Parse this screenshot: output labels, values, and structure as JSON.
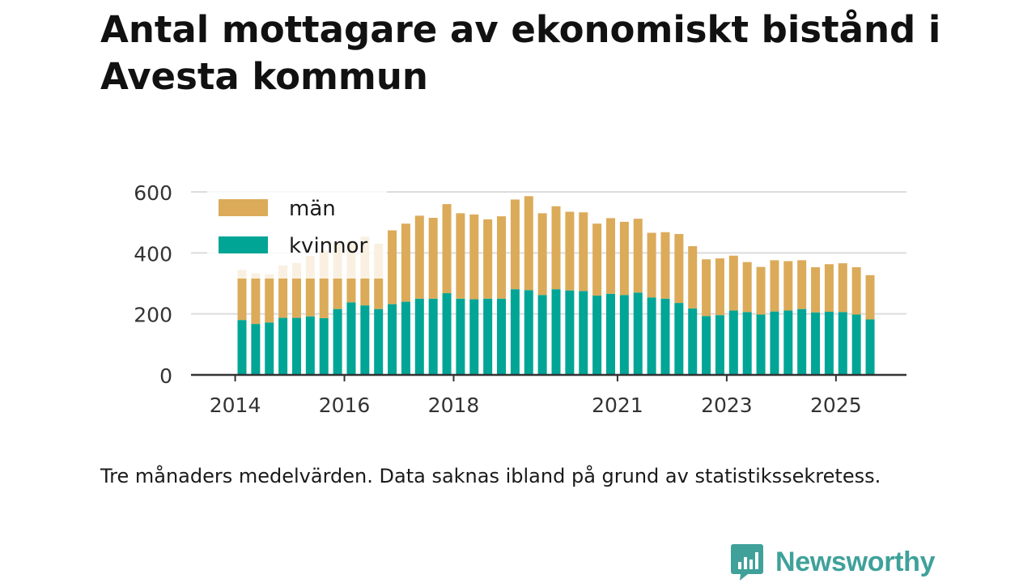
{
  "title": "Antal mottagare av ekonomiskt bistånd i Avesta kommun",
  "note": "Tre månaders medelvärden. Data saknas ibland på grund av statistikssekretess.",
  "brand": {
    "name": "Newsworthy",
    "icon": "bar-chart-speech-bubble-icon",
    "color": "#3fa19a"
  },
  "colors": {
    "man": "#dbab5a",
    "kvinnor": "#00a596",
    "grid": "#dcdcdc",
    "axis": "#333333"
  },
  "chart_data": {
    "type": "bar",
    "stacked": true,
    "title": "Antal mottagare av ekonomiskt bistånd i Avesta kommun",
    "xlabel": "",
    "ylabel": "",
    "ylim": [
      0,
      600
    ],
    "yticks": [
      0,
      200,
      400,
      600
    ],
    "xticks": [
      {
        "label": "2014",
        "pos": -0.5
      },
      {
        "label": "2016",
        "pos": 7.5
      },
      {
        "label": "2018",
        "pos": 15.5
      },
      {
        "label": "2021",
        "pos": 27.5
      },
      {
        "label": "2023",
        "pos": 35.5
      },
      {
        "label": "2025",
        "pos": 43.5
      }
    ],
    "grid": true,
    "legend": {
      "position": "top-left",
      "entries": [
        "män",
        "kvinnor"
      ]
    },
    "series": [
      {
        "name": "kvinnor",
        "values": [
          180,
          167,
          172,
          187,
          187,
          192,
          186,
          216,
          238,
          228,
          216,
          232,
          240,
          250,
          250,
          268,
          250,
          248,
          250,
          250,
          281,
          278,
          262,
          281,
          277,
          275,
          260,
          266,
          262,
          270,
          254,
          250,
          236,
          218,
          193,
          196,
          211,
          206,
          198,
          208,
          211,
          216,
          205,
          207,
          206,
          198,
          182
        ]
      },
      {
        "name": "män",
        "values": [
          164,
          166,
          158,
          172,
          180,
          198,
          220,
          214,
          200,
          225,
          214,
          242,
          256,
          272,
          265,
          292,
          280,
          278,
          260,
          270,
          294,
          308,
          268,
          272,
          258,
          258,
          236,
          248,
          240,
          242,
          212,
          218,
          226,
          204,
          186,
          186,
          180,
          164,
          156,
          168,
          162,
          160,
          148,
          156,
          160,
          155,
          145
        ]
      }
    ]
  }
}
